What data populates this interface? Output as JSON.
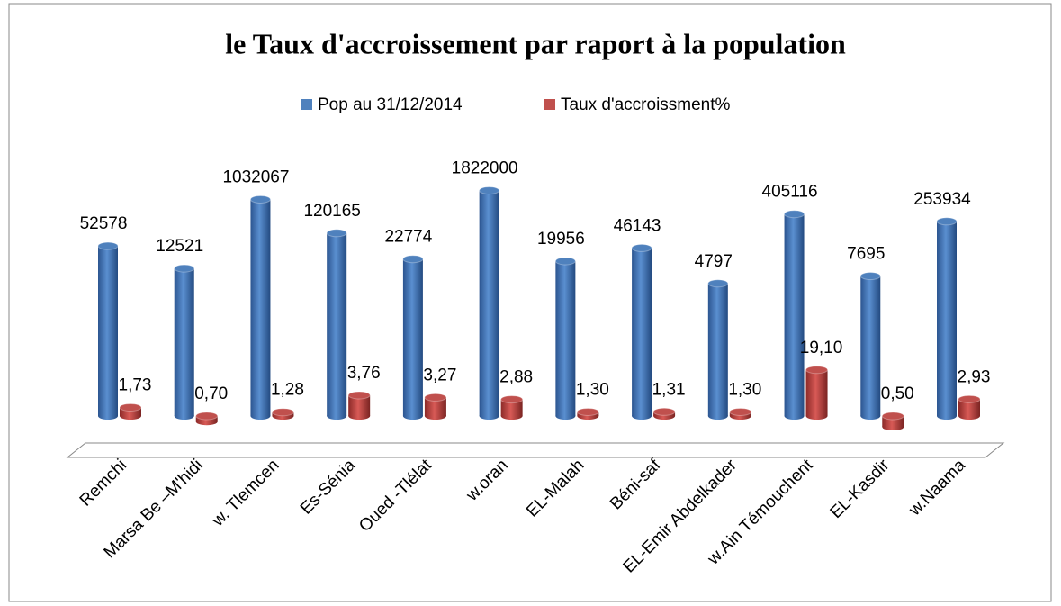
{
  "chart_data": {
    "type": "bar",
    "title": "le Taux d'accroissement  par raport à la population",
    "categories": [
      "Remchi",
      "Marsa Be –M'hidi",
      "w. Tlemcen",
      "Es-Sénia",
      "Oued -Tlélat",
      "w.oran",
      "EL-Malah",
      "Béni-saf",
      "EL-Emir Abdelkader",
      "w.Ain Témouchent",
      "EL-Kasdir",
      "w.Naama"
    ],
    "series": [
      {
        "name": "Pop au 31/12/2014",
        "color": "#4f81bd",
        "values": [
          52578,
          12521,
          1032067,
          120165,
          22774,
          1822000,
          19956,
          46143,
          4797,
          405116,
          7695,
          253934
        ]
      },
      {
        "name": "Taux d'accroissment%",
        "color": "#c0504d",
        "values": [
          1.73,
          0.7,
          1.28,
          3.76,
          3.27,
          2.88,
          1.3,
          1.31,
          1.3,
          19.1,
          0.5,
          2.93
        ],
        "value_labels": [
          "1,73",
          "0,70",
          "1,28",
          "3,76",
          "3,27",
          "2,88",
          "1,30",
          "1,31",
          "1,30",
          "19,10",
          "0,50",
          "2,93"
        ]
      }
    ],
    "log_scale": true,
    "ylim": [
      1,
      10000000
    ],
    "legend": "top"
  }
}
